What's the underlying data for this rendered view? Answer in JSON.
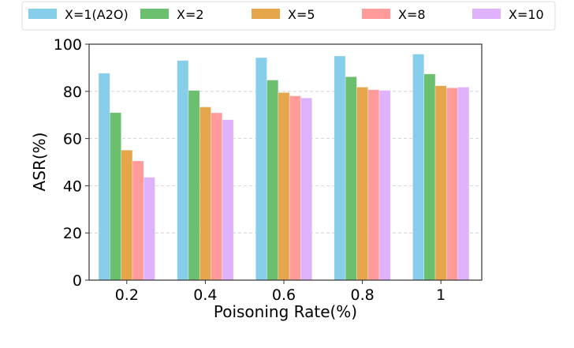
{
  "chart_data": {
    "type": "bar",
    "categories": [
      "0.2",
      "0.4",
      "0.6",
      "0.8",
      "1"
    ],
    "series": [
      {
        "name": "X=1(A2O)",
        "color": "#87ceeb",
        "values": [
          87.7,
          93.1,
          94.3,
          95.0,
          95.8
        ]
      },
      {
        "name": "X=2",
        "color": "#6dbf70",
        "values": [
          71.0,
          80.4,
          84.8,
          86.2,
          87.4
        ]
      },
      {
        "name": "X=5",
        "color": "#e6a64c",
        "values": [
          55.1,
          73.4,
          79.5,
          81.8,
          82.4
        ]
      },
      {
        "name": "X=8",
        "color": "#ff9b9b",
        "values": [
          50.5,
          70.9,
          78.1,
          80.7,
          81.5
        ]
      },
      {
        "name": "X=10",
        "color": "#dfb3fb",
        "values": [
          43.6,
          68.0,
          77.2,
          80.4,
          81.8
        ]
      }
    ],
    "xlabel": "Poisoning Rate(%)",
    "ylabel": "ASR(%)",
    "ylim": [
      0,
      100
    ],
    "yticks": [
      "0",
      "20",
      "40",
      "60",
      "80",
      "100"
    ],
    "grid": "horizontal dashed",
    "legend": "top"
  }
}
